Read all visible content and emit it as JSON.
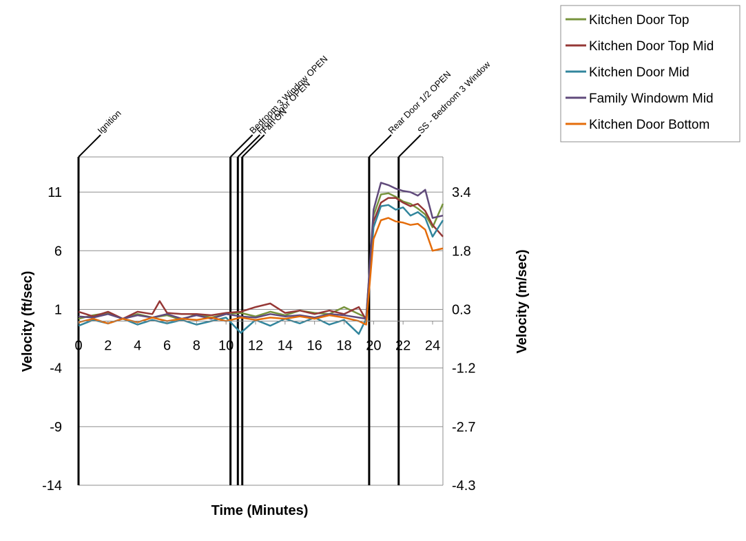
{
  "chart_data": {
    "type": "line",
    "xlabel": "Time (Minutes)",
    "ylabel_left": "Velocity (ft/sec)",
    "ylabel_right": "Velocity (m/sec)",
    "xlim": [
      0,
      24.7
    ],
    "ylim": [
      -14,
      14
    ],
    "x_ticks": [
      0,
      2,
      4,
      6,
      8,
      10,
      12,
      14,
      16,
      18,
      20,
      22,
      24
    ],
    "y_ticks_left": [
      11,
      6,
      1,
      -4,
      -9,
      -14
    ],
    "y_ticks_right": [
      "3.4",
      "1.8",
      "0.3",
      "-1.2",
      "-2.7",
      "-4.3"
    ],
    "grid": true,
    "legend_position": "top-right",
    "events": [
      {
        "label": "Ignition",
        "x": 0.0
      },
      {
        "label": "Bedroom 3 Window OPEN",
        "x": 10.3
      },
      {
        "label": "Front Door OPEN",
        "x": 10.8
      },
      {
        "label": "Fan ON",
        "x": 11.1
      },
      {
        "label": "Rear Door 1/2 OPEN",
        "x": 19.7
      },
      {
        "label": "SS - Bedroom 3 Window",
        "x": 21.7
      }
    ],
    "series": [
      {
        "name": "Kitchen Door Top",
        "color": "#77933c",
        "x": [
          0,
          1,
          2,
          3,
          4,
          5,
          6,
          7,
          8,
          9,
          10,
          11,
          12,
          13,
          14,
          15,
          16,
          17,
          18,
          19,
          19.5,
          20,
          20.5,
          21,
          21.5,
          22,
          22.5,
          23,
          23.5,
          24,
          24.7
        ],
        "values": [
          0.2,
          0.5,
          0.7,
          0.2,
          0.6,
          0.3,
          0.5,
          0.1,
          0.6,
          0.3,
          0.6,
          0.7,
          0.4,
          0.8,
          0.5,
          0.9,
          0.7,
          0.6,
          1.2,
          0.6,
          0.3,
          9.0,
          10.8,
          10.9,
          10.6,
          10.2,
          10.0,
          9.6,
          9.1,
          8.0,
          10.0
        ]
      },
      {
        "name": "Kitchen Door Top Mid",
        "color": "#953735",
        "x": [
          0,
          1,
          2,
          3,
          4,
          5,
          5.5,
          6,
          7,
          8,
          9,
          10,
          11,
          12,
          13,
          14,
          15,
          16,
          17,
          18,
          19,
          19.5,
          20,
          20.5,
          21,
          21.5,
          22,
          22.5,
          23,
          23.5,
          24,
          24.7
        ],
        "values": [
          0.8,
          0.4,
          0.8,
          0.2,
          0.8,
          0.6,
          1.7,
          0.7,
          0.6,
          0.6,
          0.5,
          0.7,
          0.8,
          1.2,
          1.5,
          0.7,
          0.9,
          0.6,
          0.9,
          0.6,
          1.2,
          0.1,
          8.5,
          10.1,
          10.5,
          10.5,
          10.1,
          9.8,
          10.0,
          9.4,
          8.2,
          7.2
        ]
      },
      {
        "name": "Kitchen Door Mid",
        "color": "#31859c",
        "x": [
          0,
          1,
          2,
          3,
          4,
          5,
          6,
          7,
          8,
          9,
          10,
          11,
          12,
          13,
          14,
          15,
          16,
          17,
          18,
          19,
          19.5,
          20,
          20.5,
          21,
          21.5,
          22,
          22.5,
          23,
          23.5,
          24,
          24.7
        ],
        "values": [
          -0.4,
          0.1,
          -0.2,
          0.2,
          -0.3,
          0.1,
          -0.2,
          0.1,
          -0.3,
          0.0,
          0.3,
          -1.0,
          0.1,
          -0.4,
          0.2,
          -0.2,
          0.3,
          -0.3,
          0.1,
          -1.1,
          0.2,
          8.0,
          9.8,
          9.9,
          9.5,
          9.7,
          9.0,
          9.3,
          8.8,
          7.2,
          8.6
        ]
      },
      {
        "name": "Family Windowm Mid",
        "color": "#604a7b",
        "x": [
          0,
          1,
          2,
          3,
          4,
          5,
          6,
          7,
          8,
          9,
          10,
          11,
          12,
          13,
          14,
          15,
          16,
          17,
          18,
          19,
          19.5,
          20,
          20.5,
          21,
          21.5,
          22,
          22.5,
          23,
          23.5,
          24,
          24.7
        ],
        "values": [
          0.4,
          0.3,
          0.6,
          0.2,
          0.5,
          0.3,
          0.6,
          0.2,
          0.5,
          0.2,
          0.6,
          0.4,
          0.3,
          0.6,
          0.4,
          0.5,
          0.3,
          0.6,
          0.5,
          0.3,
          0.2,
          9.5,
          11.8,
          11.6,
          11.3,
          11.1,
          11.0,
          10.7,
          11.2,
          8.8,
          9.0
        ]
      },
      {
        "name": "Kitchen Door Bottom",
        "color": "#e46c0a",
        "x": [
          0,
          1,
          2,
          3,
          4,
          5,
          6,
          7,
          8,
          9,
          10,
          11,
          12,
          13,
          14,
          15,
          16,
          17,
          18,
          19,
          19.5,
          20,
          20.5,
          21,
          21.5,
          22,
          22.5,
          23,
          23.5,
          24,
          24.7
        ],
        "values": [
          -0.1,
          0.2,
          -0.2,
          0.2,
          -0.1,
          0.3,
          0.0,
          0.2,
          0.1,
          0.3,
          0.0,
          0.3,
          0.1,
          0.3,
          0.2,
          0.4,
          0.2,
          0.5,
          0.3,
          0.0,
          -0.3,
          7.0,
          8.6,
          8.8,
          8.5,
          8.4,
          8.2,
          8.3,
          7.8,
          6.0,
          6.2
        ]
      }
    ]
  }
}
